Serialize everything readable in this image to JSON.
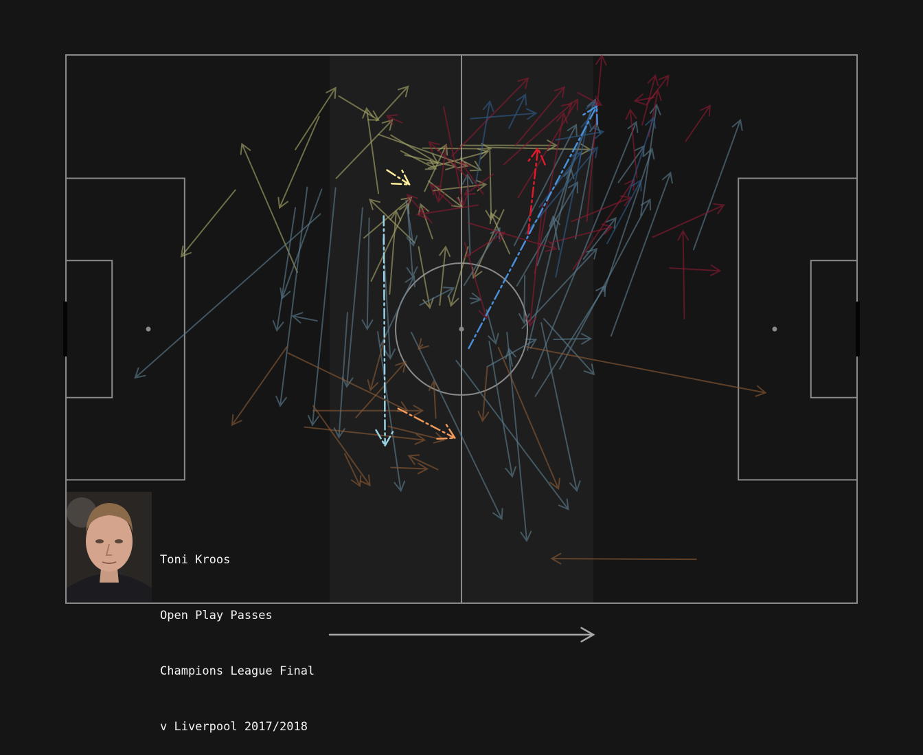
{
  "player": {
    "name": "Toni Kroos",
    "caption": [
      "Toni Kroos",
      "Open Play Passes",
      "Champions League Final",
      "v Liverpool 2017/2018"
    ]
  },
  "colors": {
    "background": "#151515",
    "pitch_lines": "#8a8a8a",
    "zone_highlight": "#1e1e1e",
    "attack_arrow": "#a8a8a8",
    "groups": {
      "olive": "#a7a66a",
      "steel": "#5c7d90",
      "crimson": "#8a1a30",
      "navy": "#2e5d8c",
      "brown": "#8a5a35"
    },
    "highlight_groups": {
      "olive": "#ffef9c",
      "steel": "#9ad2e6",
      "crimson": "#e01a2a",
      "navy": "#4a90d9",
      "brown": "#f29a5a"
    }
  },
  "pitch": {
    "x_range": [
      0,
      120
    ],
    "y_range": [
      0,
      80
    ],
    "attack_direction": "right"
  },
  "chart_data": {
    "type": "scatter",
    "title": "",
    "xlabel": "",
    "ylabel": "",
    "xlim": [
      0,
      120
    ],
    "ylim": [
      0,
      80
    ],
    "grid": false,
    "legend": "none",
    "series": [
      {
        "group": "olive",
        "passes": [
          [
            25.7,
            60.3,
            17.5,
            50.6
          ],
          [
            35.1,
            48.3,
            26.7,
            67.0
          ],
          [
            34.8,
            66.2,
            40.9,
            75.2
          ],
          [
            38.4,
            71.0,
            32.4,
            57.7
          ],
          [
            41.0,
            62.0,
            49.5,
            70.5
          ],
          [
            47.1,
            70.4,
            51.9,
            75.4
          ],
          [
            49.3,
            68.3,
            56.4,
            64.2
          ],
          [
            41.4,
            74.0,
            47.4,
            70.5
          ],
          [
            47.4,
            68.4,
            60.9,
            63.8
          ],
          [
            51.4,
            65.4,
            59.1,
            63.7
          ],
          [
            54.1,
            66.4,
            64.4,
            66.3
          ],
          [
            55.0,
            61.6,
            60.1,
            57.8
          ],
          [
            50.8,
            66.0,
            56.1,
            63.4
          ],
          [
            55.7,
            60.2,
            63.7,
            61.1
          ],
          [
            46.3,
            47.0,
            51.9,
            58.3
          ],
          [
            45.2,
            53.3,
            52.4,
            59.2
          ],
          [
            49.1,
            45.1,
            50.1,
            57.2
          ],
          [
            53.5,
            52.0,
            55.2,
            43.1
          ],
          [
            56.7,
            43.5,
            57.6,
            52.0
          ],
          [
            55.0,
            63.5,
            64.0,
            65.9
          ],
          [
            64.3,
            66.0,
            64.5,
            56.0
          ],
          [
            60.5,
            64.4,
            62.9,
            63.2
          ],
          [
            61.0,
            52.0,
            58.4,
            43.4
          ],
          [
            67.3,
            51.0,
            64.5,
            56.9
          ],
          [
            66.4,
            57.4,
            61.8,
            47.5
          ],
          [
            64.1,
            66.5,
            79.5,
            66.2
          ],
          [
            59.9,
            66.8,
            74.4,
            66.8
          ],
          [
            55.6,
            53.2,
            53.8,
            58.2
          ],
          [
            52.9,
            52.6,
            46.1,
            58.9
          ],
          [
            47.4,
            59.8,
            45.6,
            72.2
          ],
          [
            54.4,
            60.1,
            57.7,
            66.9
          ]
        ],
        "highlight": [
          48.7,
          63.2,
          52.1,
          61.1
        ]
      },
      {
        "group": "steel",
        "passes": [
          [
            38.6,
            56.8,
            10.5,
            32.9
          ],
          [
            34.8,
            57.7,
            32.0,
            39.8
          ],
          [
            36.6,
            60.7,
            32.5,
            28.8
          ],
          [
            38.8,
            60.4,
            32.8,
            44.5
          ],
          [
            40.9,
            60.6,
            37.4,
            26.0
          ],
          [
            45.0,
            57.7,
            42.6,
            31.6
          ],
          [
            46.0,
            56.2,
            45.7,
            40.0
          ],
          [
            48.1,
            53.2,
            49.2,
            35.7
          ],
          [
            51.8,
            58.0,
            52.6,
            47.7
          ],
          [
            47.3,
            39.6,
            50.8,
            16.4
          ],
          [
            47.7,
            37.5,
            52.8,
            47.7
          ],
          [
            52.4,
            39.5,
            66.1,
            12.3
          ],
          [
            59.2,
            35.4,
            76.2,
            13.7
          ],
          [
            64.2,
            38.2,
            67.7,
            18.5
          ],
          [
            66.9,
            39.5,
            69.9,
            9.1
          ],
          [
            61.3,
            50.8,
            60.9,
            62.5
          ],
          [
            60.4,
            46.4,
            65.8,
            54.7
          ],
          [
            68.4,
            46.3,
            77.6,
            61.4
          ],
          [
            68.0,
            52.2,
            77.4,
            69.8
          ],
          [
            71.5,
            49.3,
            80.3,
            73.5
          ],
          [
            70.7,
            32.8,
            86.5,
            70.2
          ],
          [
            74.9,
            34.2,
            88.6,
            58.9
          ],
          [
            81.6,
            45.5,
            88.9,
            66.3
          ],
          [
            82.7,
            39.0,
            91.7,
            62.8
          ],
          [
            87.2,
            56.6,
            89.6,
            72.7
          ],
          [
            70.0,
            36.9,
            76.6,
            63.4
          ],
          [
            67.7,
            34.6,
            67.2,
            37.1
          ],
          [
            72.5,
            41.5,
            80.1,
            33.4
          ],
          [
            72.1,
            40.9,
            77.5,
            16.4
          ],
          [
            78.5,
            50.2,
            83.4,
            56.2
          ],
          [
            71.2,
            30.2,
            81.8,
            46.3
          ],
          [
            74.0,
            38.5,
            79.6,
            38.6
          ],
          [
            83.8,
            61.4,
            87.7,
            66.7
          ],
          [
            95.2,
            51.6,
            102.3,
            70.5
          ],
          [
            69.6,
            47.8,
            69.5,
            40.9
          ],
          [
            42.7,
            42.4,
            41.4,
            24.2
          ],
          [
            38.1,
            41.2,
            34.4,
            41.9
          ],
          [
            51.6,
            58.8,
            52.7,
            52.2
          ],
          [
            61.3,
            44.5,
            62.9,
            44.3
          ],
          [
            74.8,
            51.6,
            73.9,
            56.4
          ],
          [
            53.7,
            43.5,
            58.8,
            46.0
          ],
          [
            63.9,
            34.5,
            71.3,
            38.5
          ],
          [
            77.3,
            53.2,
            80.5,
            70.0
          ],
          [
            69.2,
            40.1,
            80.5,
            51.7
          ],
          [
            63.8,
            42.8,
            65.2,
            37.9
          ]
        ],
        "highlight": [
          48.2,
          56.5,
          48.4,
          23.0
        ]
      },
      {
        "group": "crimson",
        "passes": [
          [
            51.0,
            70.1,
            48.7,
            71.1
          ],
          [
            57.3,
            72.4,
            60.3,
            58.0
          ],
          [
            57.7,
            66.9,
            56.5,
            58.6
          ],
          [
            60.8,
            62.2,
            55.1,
            67.3
          ],
          [
            58.7,
            58.0,
            55.3,
            61.1
          ],
          [
            71.1,
            48.1,
            75.5,
            71.5
          ],
          [
            72.3,
            58.3,
            70.4,
            40.5
          ],
          [
            73.5,
            52.6,
            82.8,
            54.9
          ],
          [
            76.9,
            48.7,
            86.2,
            61.8
          ],
          [
            76.7,
            55.7,
            85.7,
            59.2
          ],
          [
            79.0,
            55.7,
            81.3,
            79.9
          ],
          [
            68.6,
            59.2,
            77.6,
            73.5
          ],
          [
            58.6,
            65.3,
            70.1,
            76.6
          ],
          [
            66.4,
            64.0,
            76.7,
            72.9
          ],
          [
            68.2,
            66.8,
            75.6,
            75.3
          ],
          [
            77.6,
            74.5,
            81.2,
            72.7
          ],
          [
            86.6,
            62.1,
            85.6,
            72.0
          ],
          [
            87.4,
            69.8,
            89.4,
            77.0
          ],
          [
            88.0,
            72.7,
            91.4,
            77.0
          ],
          [
            88.4,
            68.1,
            89.8,
            74.8
          ],
          [
            94.0,
            67.4,
            97.7,
            72.6
          ],
          [
            89.0,
            53.4,
            99.8,
            58.1
          ],
          [
            93.8,
            41.5,
            93.6,
            54.3
          ],
          [
            91.6,
            48.9,
            99.2,
            48.5
          ],
          [
            89.2,
            73.8,
            86.3,
            73.3
          ],
          [
            62.5,
            58.1,
            53.3,
            56.7
          ],
          [
            60.5,
            52.6,
            63.8,
            41.6
          ],
          [
            63.3,
            59.7,
            59.9,
            64.4
          ],
          [
            55.5,
            55.5,
            51.8,
            59.6
          ],
          [
            60.4,
            50.4,
            66.5,
            54.1
          ],
          [
            64.8,
            62.6,
            60.5,
            59.6
          ],
          [
            61.0,
            55.5,
            74.3,
            51.7
          ]
        ],
        "highlight": [
          70.1,
          53.9,
          71.6,
          66.4
        ]
      },
      {
        "group": "navy",
        "passes": [
          [
            61.4,
            70.7,
            71.3,
            71.5
          ],
          [
            67.2,
            69.3,
            69.7,
            74.2
          ],
          [
            62.2,
            61.4,
            64.3,
            73.2
          ],
          [
            71.8,
            57.8,
            78.1,
            65.8
          ],
          [
            75.9,
            62.0,
            80.1,
            73.1
          ],
          [
            74.3,
            47.6,
            79.2,
            70.6
          ],
          [
            74.3,
            67.6,
            81.5,
            68.8
          ],
          [
            82.1,
            52.5,
            87.2,
            61.7
          ],
          [
            85.3,
            59.5,
            89.1,
            70.8
          ],
          [
            69.7,
            53.9,
            80.6,
            66.5
          ]
        ],
        "highlight": [
          61.1,
          37.2,
          80.5,
          72.5
        ]
      },
      {
        "group": "brown",
        "passes": [
          [
            33.5,
            37.4,
            25.2,
            26.0
          ],
          [
            33.7,
            36.5,
            51.8,
            28.1
          ],
          [
            37.5,
            28.8,
            46.1,
            17.2
          ],
          [
            36.2,
            25.7,
            54.4,
            23.8
          ],
          [
            37.5,
            28.1,
            54.1,
            28.1
          ],
          [
            48.5,
            39.2,
            46.2,
            31.1
          ],
          [
            56.1,
            27.0,
            55.8,
            32.4
          ],
          [
            44.0,
            27.1,
            51.5,
            35.2
          ],
          [
            54.1,
            37.7,
            53.5,
            37.1
          ],
          [
            63.9,
            34.4,
            63.2,
            26.6
          ],
          [
            56.4,
            19.5,
            52.0,
            21.5
          ],
          [
            65.6,
            37.3,
            74.7,
            16.7
          ],
          [
            95.6,
            6.4,
            73.7,
            6.5
          ],
          [
            69.9,
            37.4,
            106.1,
            30.7
          ],
          [
            48.9,
            25.8,
            57.3,
            23.8
          ],
          [
            42.3,
            21.8,
            44.6,
            17.1
          ],
          [
            49.3,
            19.8,
            54.8,
            19.6
          ]
        ],
        "highlight": [
          50.4,
          28.4,
          59.0,
          24.1
        ]
      }
    ]
  }
}
